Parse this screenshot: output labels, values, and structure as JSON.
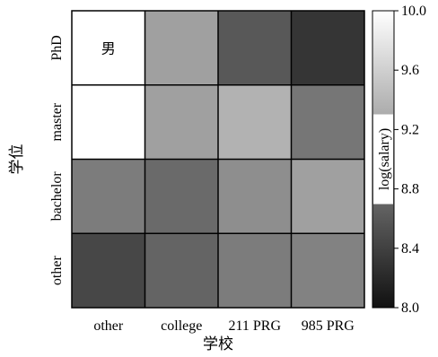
{
  "chart_data": {
    "type": "heatmap",
    "title": "男",
    "xlabel": "学校",
    "ylabel": "学位",
    "x_categories": [
      "other",
      "college",
      "211 PRG",
      "985 PRG"
    ],
    "y_categories": [
      "other",
      "bachelor",
      "master",
      "PhD"
    ],
    "values": [
      [
        8.45,
        8.7,
        8.9,
        8.95
      ],
      [
        8.9,
        8.75,
        9.05,
        9.2
      ],
      [
        10.0,
        9.2,
        9.35,
        8.85
      ],
      [
        10.0,
        9.2,
        8.6,
        8.3
      ]
    ],
    "value_note": "values[row][col], rows ordered bottom (other) to top (PhD); log(salary)",
    "colorbar": {
      "label": "log(salary)",
      "range": [
        8.0,
        10.0
      ],
      "ticks": [
        "8.0",
        "8.4",
        "8.8",
        "9.2",
        "9.6",
        "10.0"
      ],
      "colormap": "gray"
    }
  }
}
